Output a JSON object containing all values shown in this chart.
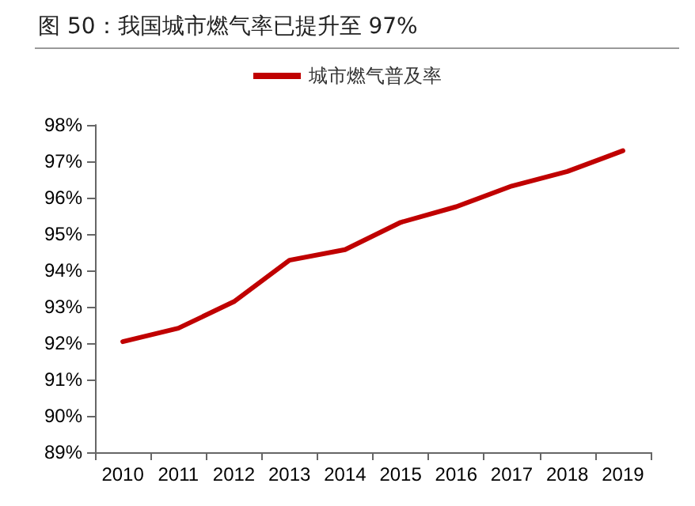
{
  "chart_data": {
    "type": "line",
    "title": "图 50：我国城市燃气率已提升至 97%",
    "categories": [
      "2010",
      "2011",
      "2012",
      "2013",
      "2014",
      "2015",
      "2016",
      "2017",
      "2018",
      "2019"
    ],
    "series": [
      {
        "name": "城市燃气普及率",
        "color": "#c00000",
        "values": [
          92.04,
          92.41,
          93.14,
          94.28,
          94.57,
          95.32,
          95.75,
          96.32,
          96.72,
          97.29
        ]
      }
    ],
    "ylim": [
      89,
      98
    ],
    "yticks": [
      {
        "value": 89,
        "label": "89%"
      },
      {
        "value": 90,
        "label": "90%"
      },
      {
        "value": 91,
        "label": "91%"
      },
      {
        "value": 92,
        "label": "92%"
      },
      {
        "value": 93,
        "label": "93%"
      },
      {
        "value": 94,
        "label": "94%"
      },
      {
        "value": 95,
        "label": "95%"
      },
      {
        "value": 96,
        "label": "96%"
      },
      {
        "value": 97,
        "label": "97%"
      },
      {
        "value": 98,
        "label": "98%"
      }
    ],
    "grid": false,
    "legend": "top",
    "marker": "none",
    "line_style": "solid"
  }
}
